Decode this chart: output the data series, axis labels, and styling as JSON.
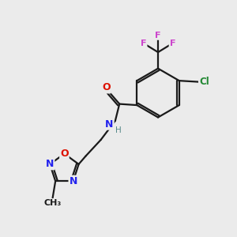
{
  "bg_color": "#ebebeb",
  "bond_color": "#1a1a1a",
  "colors": {
    "O": "#dd1100",
    "N": "#2222ee",
    "Cl": "#228833",
    "F": "#cc44cc",
    "C": "#1a1a1a",
    "H": "#558888"
  }
}
